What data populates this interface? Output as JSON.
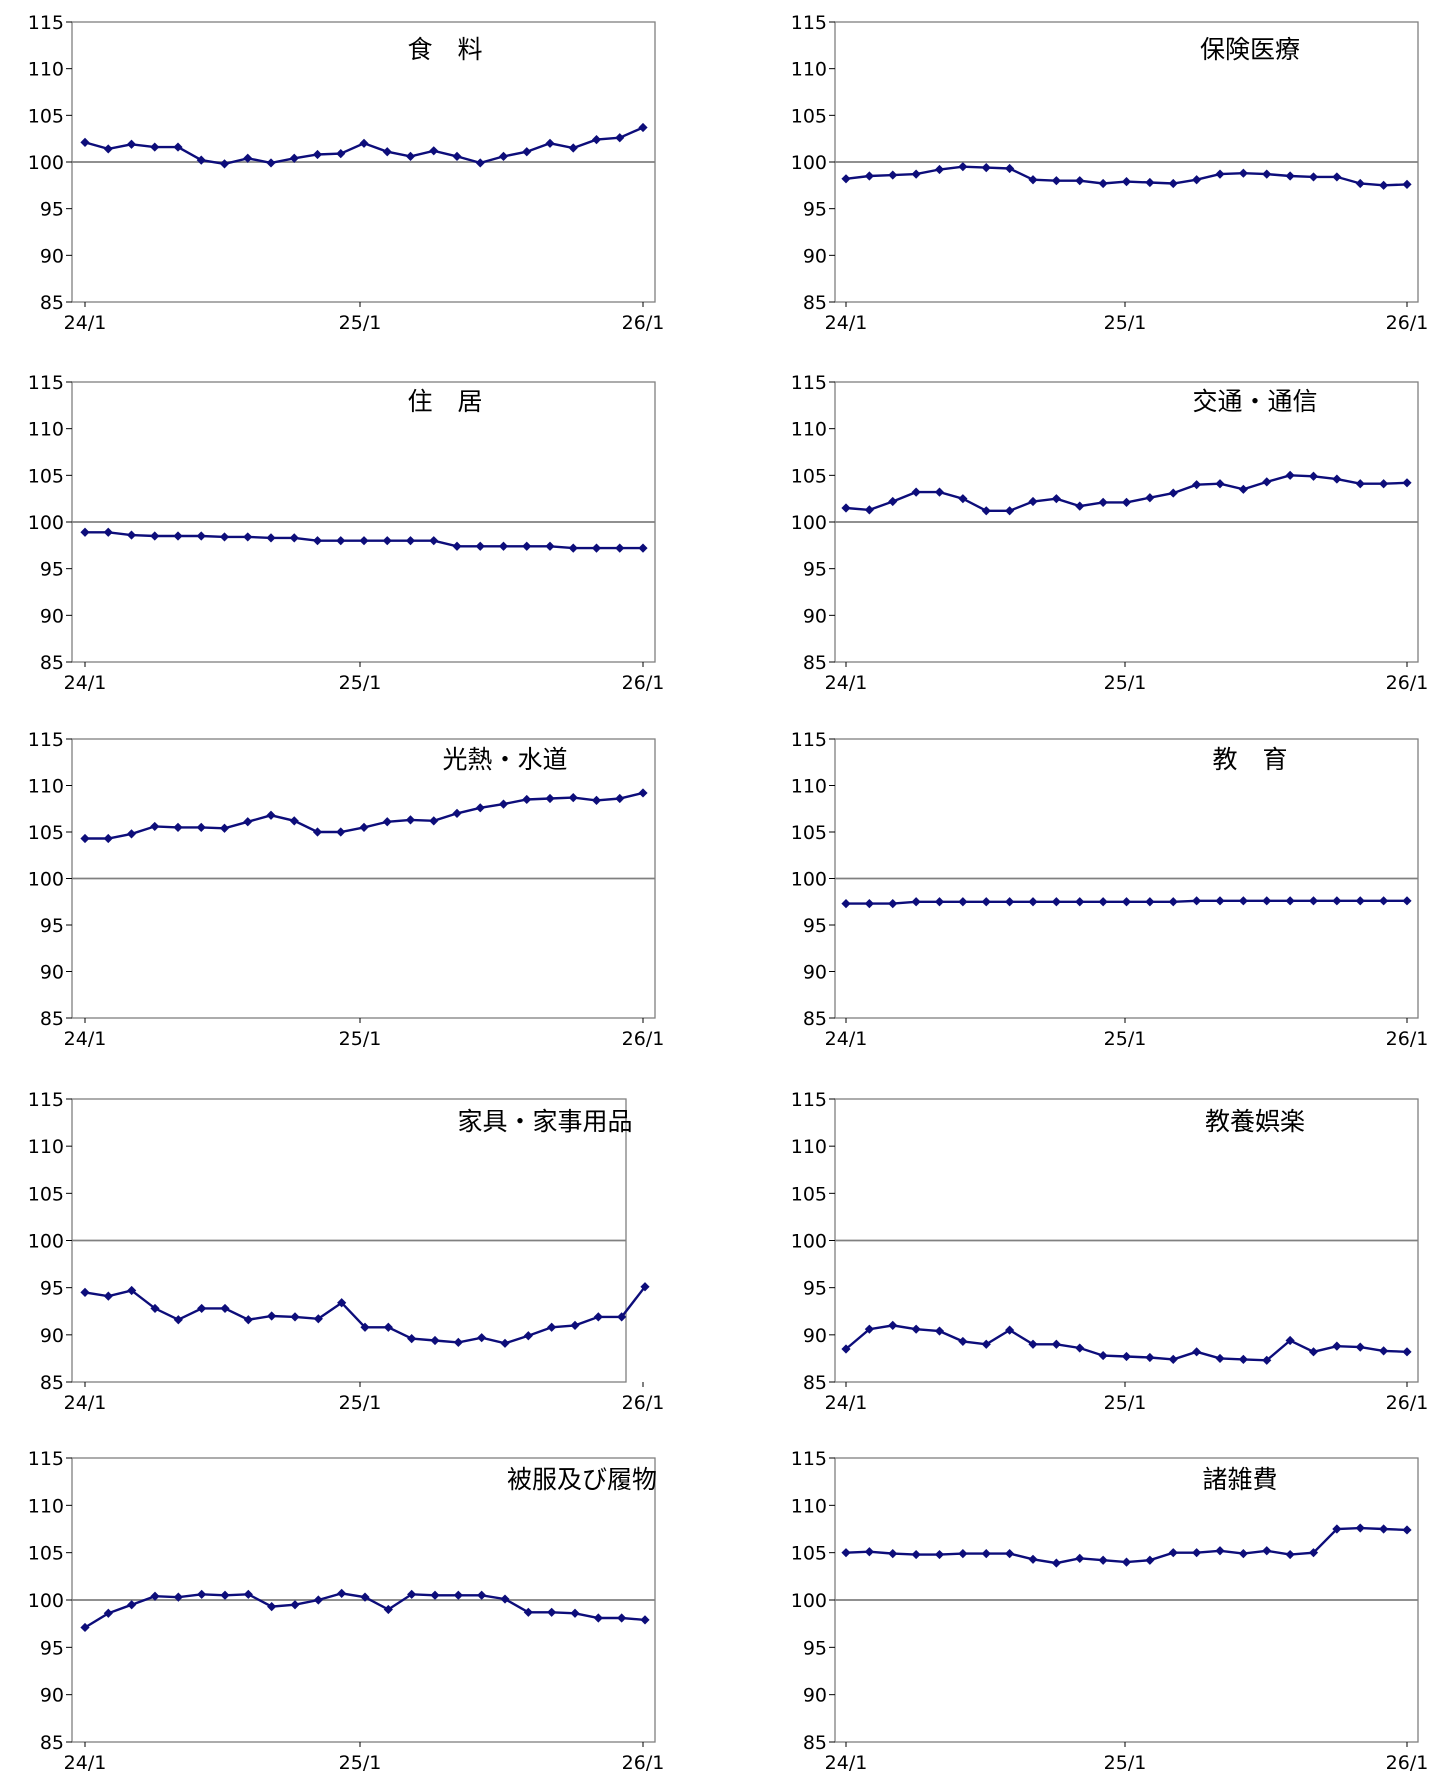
{
  "colors": {
    "series": "#0d0d7a",
    "baseline": "#808080",
    "frame": "#808080"
  },
  "chart_data": [
    {
      "type": "line",
      "title": "食　料",
      "yticks": [
        "115",
        "110",
        "105",
        "100",
        "95",
        "90",
        "85"
      ],
      "xticks": [
        "24/1",
        "25/1",
        "26/1"
      ],
      "ylim": [
        85,
        115
      ],
      "baseline": 100,
      "values": [
        102.1,
        101.4,
        101.9,
        101.6,
        101.6,
        100.2,
        99.8,
        100.4,
        99.9,
        100.4,
        100.8,
        100.9,
        102.0,
        101.1,
        100.6,
        101.2,
        100.6,
        99.9,
        100.6,
        101.1,
        102.0,
        101.5,
        102.4,
        102.6,
        103.7
      ]
    },
    {
      "type": "line",
      "title": "保険医療",
      "yticks": [
        "115",
        "110",
        "105",
        "100",
        "95",
        "90",
        "85"
      ],
      "xticks": [
        "24/1",
        "25/1",
        "26/1"
      ],
      "ylim": [
        85,
        115
      ],
      "baseline": 100,
      "values": [
        98.2,
        98.5,
        98.6,
        98.7,
        99.2,
        99.5,
        99.4,
        99.3,
        98.1,
        98.0,
        98.0,
        97.7,
        97.9,
        97.8,
        97.7,
        98.1,
        98.7,
        98.8,
        98.7,
        98.5,
        98.4,
        98.4,
        97.7,
        97.5,
        97.6
      ]
    },
    {
      "type": "line",
      "title": "住　居",
      "yticks": [
        "115",
        "110",
        "105",
        "100",
        "95",
        "90",
        "85"
      ],
      "xticks": [
        "24/1",
        "25/1",
        "26/1"
      ],
      "ylim": [
        85,
        115
      ],
      "baseline": 100,
      "values": [
        98.9,
        98.9,
        98.6,
        98.5,
        98.5,
        98.5,
        98.4,
        98.4,
        98.3,
        98.3,
        98.0,
        98.0,
        98.0,
        98.0,
        98.0,
        98.0,
        97.4,
        97.4,
        97.4,
        97.4,
        97.4,
        97.2,
        97.2,
        97.2,
        97.2
      ]
    },
    {
      "type": "line",
      "title": "交通・通信",
      "yticks": [
        "115",
        "110",
        "105",
        "100",
        "95",
        "90",
        "85"
      ],
      "xticks": [
        "24/1",
        "25/1",
        "26/1"
      ],
      "ylim": [
        85,
        115
      ],
      "baseline": 100,
      "values": [
        101.5,
        101.3,
        102.2,
        103.2,
        103.2,
        102.5,
        101.2,
        101.2,
        102.2,
        102.5,
        101.7,
        102.1,
        102.1,
        102.6,
        103.1,
        104.0,
        104.1,
        103.5,
        104.3,
        105.0,
        104.9,
        104.6,
        104.1,
        104.1,
        104.2
      ]
    },
    {
      "type": "line",
      "title": "光熱・水道",
      "yticks": [
        "115",
        "110",
        "105",
        "100",
        "95",
        "90",
        "85"
      ],
      "xticks": [
        "24/1",
        "25/1",
        "26/1"
      ],
      "ylim": [
        85,
        115
      ],
      "baseline": 100,
      "values": [
        104.3,
        104.3,
        104.8,
        105.6,
        105.5,
        105.5,
        105.4,
        106.1,
        106.8,
        106.2,
        105.0,
        105.0,
        105.5,
        106.1,
        106.3,
        106.2,
        107.0,
        107.6,
        108.0,
        108.5,
        108.6,
        108.7,
        108.4,
        108.6,
        109.2
      ]
    },
    {
      "type": "line",
      "title": "教　育",
      "yticks": [
        "115",
        "110",
        "105",
        "100",
        "95",
        "90",
        "85"
      ],
      "xticks": [
        "24/1",
        "25/1",
        "26/1"
      ],
      "ylim": [
        85,
        115
      ],
      "baseline": 100,
      "values": [
        97.3,
        97.3,
        97.3,
        97.5,
        97.5,
        97.5,
        97.5,
        97.5,
        97.5,
        97.5,
        97.5,
        97.5,
        97.5,
        97.5,
        97.5,
        97.6,
        97.6,
        97.6,
        97.6,
        97.6,
        97.6,
        97.6,
        97.6,
        97.6,
        97.6
      ]
    },
    {
      "type": "line",
      "title": "家具・家事用品",
      "yticks": [
        "115",
        "110",
        "105",
        "100",
        "95",
        "90",
        "85"
      ],
      "xticks": [
        "24/1",
        "25/1",
        "26/1"
      ],
      "ylim": [
        85,
        115
      ],
      "baseline": 100,
      "values": [
        94.5,
        94.1,
        94.7,
        92.8,
        91.6,
        92.8,
        92.8,
        91.6,
        92.0,
        91.9,
        91.7,
        93.4,
        90.8,
        90.8,
        89.6,
        89.4,
        89.2,
        89.7,
        89.1,
        89.9,
        90.8,
        91.0,
        91.9,
        91.9,
        95.1
      ]
    },
    {
      "type": "line",
      "title": "教養娯楽",
      "yticks": [
        "115",
        "110",
        "105",
        "100",
        "95",
        "90",
        "85"
      ],
      "xticks": [
        "24/1",
        "25/1",
        "26/1"
      ],
      "ylim": [
        85,
        115
      ],
      "baseline": 100,
      "values": [
        88.5,
        90.6,
        91.0,
        90.6,
        90.4,
        89.3,
        89.0,
        90.5,
        89.0,
        89.0,
        88.6,
        87.8,
        87.7,
        87.6,
        87.4,
        88.2,
        87.5,
        87.4,
        87.3,
        89.4,
        88.2,
        88.8,
        88.7,
        88.3,
        88.2
      ]
    },
    {
      "type": "line",
      "title": "被服及び履物",
      "yticks": [
        "115",
        "110",
        "105",
        "100",
        "95",
        "90",
        "85"
      ],
      "xticks": [
        "24/1",
        "25/1",
        "26/1"
      ],
      "ylim": [
        85,
        115
      ],
      "baseline": 100,
      "values": [
        97.1,
        98.6,
        99.5,
        100.4,
        100.3,
        100.6,
        100.5,
        100.6,
        99.3,
        99.5,
        100.0,
        100.7,
        100.3,
        99.0,
        100.6,
        100.5,
        100.5,
        100.5,
        100.1,
        98.7,
        98.7,
        98.6,
        98.1,
        98.1,
        97.9
      ]
    },
    {
      "type": "line",
      "title": "諸雑費",
      "yticks": [
        "115",
        "110",
        "105",
        "100",
        "95",
        "90",
        "85"
      ],
      "xticks": [
        "24/1",
        "25/1",
        "26/1"
      ],
      "ylim": [
        85,
        115
      ],
      "baseline": 100,
      "values": [
        105.0,
        105.1,
        104.9,
        104.8,
        104.8,
        104.9,
        104.9,
        104.9,
        104.3,
        103.9,
        104.4,
        104.2,
        104.0,
        104.2,
        105.0,
        105.0,
        105.2,
        104.9,
        105.2,
        104.8,
        105.0,
        107.5,
        107.6,
        107.5,
        107.4
      ]
    }
  ]
}
